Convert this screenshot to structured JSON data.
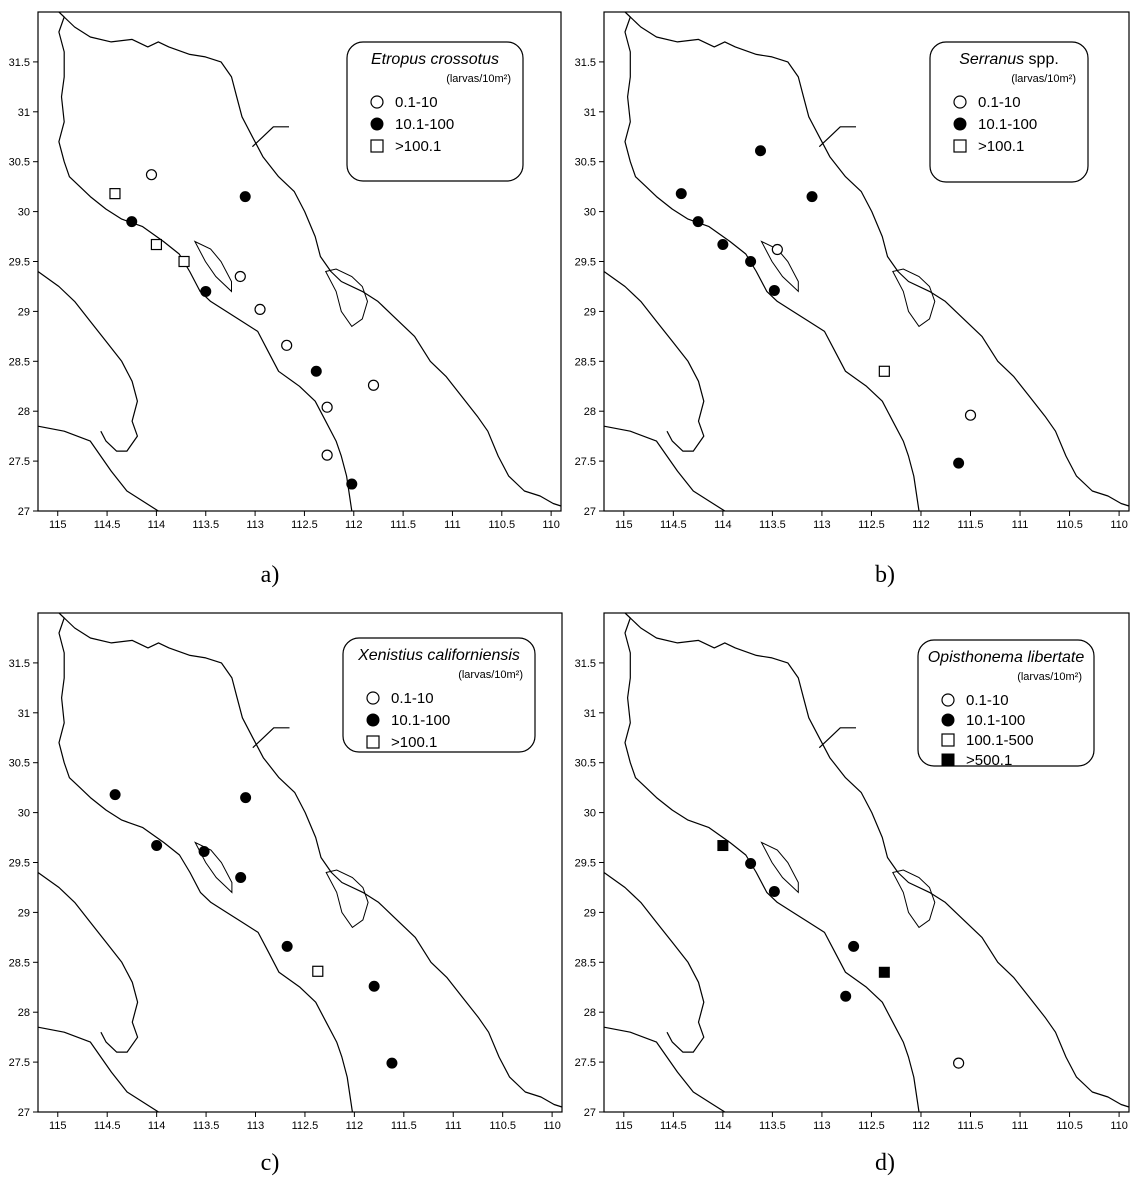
{
  "axis": {
    "x_ticks": [
      "115",
      "114.5",
      "114",
      "113.5",
      "113",
      "112.5",
      "112",
      "111.5",
      "111",
      "110.5",
      "110"
    ],
    "y_ticks": [
      "27",
      "27.5",
      "28",
      "28.5",
      "29",
      "29.5",
      "30",
      "30.5",
      "31",
      "31.5"
    ],
    "x_range": [
      115.2,
      109.9
    ],
    "y_range": [
      27,
      32
    ]
  },
  "symbols": {
    "open_circle": "open-circle",
    "filled_circle": "filled-circle",
    "open_square": "open-square",
    "filled_square": "filled-square"
  },
  "panels": [
    {
      "caption": "a)",
      "legend": {
        "title_italic": "Etropus crossotus",
        "title_rest": "",
        "units": "(larvas/10m²)",
        "items": [
          {
            "symbol": "open-circle",
            "label": "0.1-10"
          },
          {
            "symbol": "filled-circle",
            "label": "10.1-100"
          },
          {
            "symbol": "open-square",
            "label": ">100.1"
          }
        ]
      },
      "stations": [
        {
          "lon": 114.42,
          "lat": 30.18,
          "symbol": "open-square"
        },
        {
          "lon": 114.05,
          "lat": 30.37,
          "symbol": "open-circle"
        },
        {
          "lon": 114.25,
          "lat": 29.9,
          "symbol": "filled-circle"
        },
        {
          "lon": 113.1,
          "lat": 30.15,
          "symbol": "filled-circle"
        },
        {
          "lon": 114.0,
          "lat": 29.67,
          "symbol": "open-square"
        },
        {
          "lon": 113.72,
          "lat": 29.5,
          "symbol": "open-square"
        },
        {
          "lon": 113.5,
          "lat": 29.2,
          "symbol": "filled-circle"
        },
        {
          "lon": 113.15,
          "lat": 29.35,
          "symbol": "open-circle"
        },
        {
          "lon": 112.95,
          "lat": 29.02,
          "symbol": "open-circle"
        },
        {
          "lon": 112.68,
          "lat": 28.66,
          "symbol": "open-circle"
        },
        {
          "lon": 112.38,
          "lat": 28.4,
          "symbol": "filled-circle"
        },
        {
          "lon": 111.8,
          "lat": 28.26,
          "symbol": "open-circle"
        },
        {
          "lon": 112.27,
          "lat": 28.04,
          "symbol": "open-circle"
        },
        {
          "lon": 112.27,
          "lat": 27.56,
          "symbol": "open-circle"
        },
        {
          "lon": 112.02,
          "lat": 27.27,
          "symbol": "filled-circle"
        }
      ]
    },
    {
      "caption": "b)",
      "legend": {
        "title_italic": "Serranus",
        "title_rest": " spp.",
        "units": "(larvas/10m²)",
        "items": [
          {
            "symbol": "open-circle",
            "label": "0.1-10"
          },
          {
            "symbol": "filled-circle",
            "label": "10.1-100"
          },
          {
            "symbol": "open-square",
            "label": ">100.1"
          }
        ]
      },
      "stations": [
        {
          "lon": 113.62,
          "lat": 30.61,
          "symbol": "filled-circle"
        },
        {
          "lon": 114.42,
          "lat": 30.18,
          "symbol": "filled-circle"
        },
        {
          "lon": 113.1,
          "lat": 30.15,
          "symbol": "filled-circle"
        },
        {
          "lon": 114.25,
          "lat": 29.9,
          "symbol": "filled-circle"
        },
        {
          "lon": 114.0,
          "lat": 29.67,
          "symbol": "filled-circle"
        },
        {
          "lon": 113.45,
          "lat": 29.62,
          "symbol": "open-circle"
        },
        {
          "lon": 113.72,
          "lat": 29.5,
          "symbol": "filled-circle"
        },
        {
          "lon": 113.48,
          "lat": 29.21,
          "symbol": "filled-circle"
        },
        {
          "lon": 112.37,
          "lat": 28.4,
          "symbol": "open-square"
        },
        {
          "lon": 111.5,
          "lat": 27.96,
          "symbol": "open-circle"
        },
        {
          "lon": 111.62,
          "lat": 27.48,
          "symbol": "filled-circle"
        }
      ]
    },
    {
      "caption": "c)",
      "legend": {
        "title_italic": "Xenistius californiensis",
        "title_rest": "",
        "units": "(larvas/10m²)",
        "items": [
          {
            "symbol": "open-circle",
            "label": "0.1-10"
          },
          {
            "symbol": "filled-circle",
            "label": "10.1-100"
          },
          {
            "symbol": "open-square",
            "label": ">100.1"
          }
        ]
      },
      "stations": [
        {
          "lon": 114.42,
          "lat": 30.18,
          "symbol": "filled-circle"
        },
        {
          "lon": 113.1,
          "lat": 30.15,
          "symbol": "filled-circle"
        },
        {
          "lon": 114.0,
          "lat": 29.67,
          "symbol": "filled-circle"
        },
        {
          "lon": 113.52,
          "lat": 29.61,
          "symbol": "filled-circle"
        },
        {
          "lon": 113.15,
          "lat": 29.35,
          "symbol": "filled-circle"
        },
        {
          "lon": 112.68,
          "lat": 28.66,
          "symbol": "filled-circle"
        },
        {
          "lon": 112.37,
          "lat": 28.41,
          "symbol": "open-square"
        },
        {
          "lon": 111.8,
          "lat": 28.26,
          "symbol": "filled-circle"
        },
        {
          "lon": 111.62,
          "lat": 27.49,
          "symbol": "filled-circle"
        }
      ]
    },
    {
      "caption": "d)",
      "legend": {
        "title_italic": "Opisthonema libertate",
        "title_rest": "",
        "units": "(larvas/10m²)",
        "items": [
          {
            "symbol": "open-circle",
            "label": "0.1-10"
          },
          {
            "symbol": "filled-circle",
            "label": "10.1-100"
          },
          {
            "symbol": "open-square",
            "label": "100.1-500"
          },
          {
            "symbol": "filled-square",
            "label": ">500.1"
          }
        ]
      },
      "stations": [
        {
          "lon": 114.0,
          "lat": 29.67,
          "symbol": "filled-square"
        },
        {
          "lon": 113.72,
          "lat": 29.49,
          "symbol": "filled-circle"
        },
        {
          "lon": 113.48,
          "lat": 29.21,
          "symbol": "filled-circle"
        },
        {
          "lon": 112.68,
          "lat": 28.66,
          "symbol": "filled-circle"
        },
        {
          "lon": 112.37,
          "lat": 28.4,
          "symbol": "filled-square"
        },
        {
          "lon": 112.76,
          "lat": 28.16,
          "symbol": "filled-circle"
        },
        {
          "lon": 111.62,
          "lat": 27.49,
          "symbol": "open-circle"
        }
      ]
    }
  ]
}
